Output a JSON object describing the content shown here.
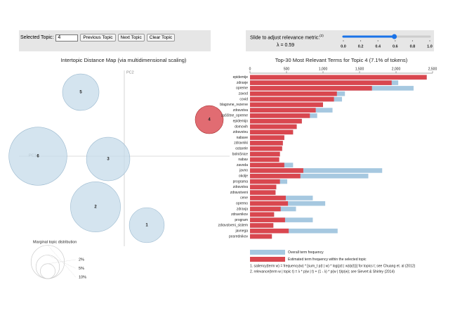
{
  "controls": {
    "selected_label": "Selected Topic:",
    "selected_value": "4",
    "buttons": [
      "Previous Topic",
      "Next Topic",
      "Clear Topic"
    ],
    "slider_label": "Slide to adjust relevance metric:",
    "slider_note": "(2)",
    "lambda": 0.59,
    "lambda_label": "λ = 0.59",
    "slider_ticks": [
      {
        "value": 0,
        "label": "0.0"
      },
      {
        "value": 0.2,
        "label": "0.2"
      },
      {
        "value": 0.4,
        "label": "0.4"
      },
      {
        "value": 0.6,
        "label": "0.6"
      },
      {
        "value": 0.8,
        "label": "0.8"
      },
      {
        "value": 1,
        "label": "1.0"
      }
    ]
  },
  "chart_data": [
    {
      "type": "bubble",
      "title": "Intertopic Distance Map (via multidimensional scaling)",
      "xlabel": "PC1",
      "ylabel": "PC2",
      "xlim": [
        -0.3,
        0.3
      ],
      "ylim": [
        -0.25,
        0.25
      ],
      "selected": 3,
      "labels": [
        "1",
        "2",
        "3",
        "4",
        "5",
        "6"
      ],
      "x": [
        0.064,
        -0.082,
        -0.046,
        0.242,
        -0.124,
        -0.246
      ],
      "y": [
        -0.196,
        -0.144,
        -0.008,
        0.104,
        0.182,
        0
      ],
      "sizes": [
        11,
        22.5,
        17,
        7.1,
        12,
        30.4
      ],
      "color": "#c5dbea",
      "selected_color": "#d9474f",
      "marginal": {
        "title": "Marginal topic distribution",
        "sizes": [
          2,
          5,
          10
        ],
        "labels": [
          "2%",
          "5%",
          "10%"
        ]
      }
    },
    {
      "type": "hbar",
      "title": "Top-30 Most Relevant Terms for Topic 4 (7.1% of tokens)",
      "xlim": [
        0,
        2500
      ],
      "xticks": [
        0,
        500,
        {
          "value": 1000,
          "label": "1,000"
        },
        {
          "value": 1500,
          "label": "1,500"
        },
        {
          "value": 2000,
          "label": "2,000"
        },
        {
          "value": 2500,
          "label": "2,500"
        }
      ],
      "categories": [
        "epidemije",
        "zdravje",
        "opreme",
        "zavod",
        "covid",
        "blagovne_rezerve",
        "zdravstva",
        "zaščitne_opreme",
        "epidemijo",
        "domovih",
        "zdravstvu",
        "nabave",
        "zdravniki",
        "ostarele",
        "bolnišnice",
        "nabav",
        "zavoda",
        "javno",
        "okolje",
        "programa",
        "zdravstva",
        "zdravstveni",
        "cene",
        "opremo",
        "zdravja",
        "zdravnikov",
        "program",
        "zdravstveni_sistem",
        "javnega",
        "posrednikov"
      ],
      "series": [
        {
          "name": "Overall term frequency",
          "color": "#a6c8e0",
          "values": [
            2420,
            2030,
            2240,
            1300,
            1260,
            1000,
            1130,
            920,
            710,
            640,
            590,
            470,
            450,
            440,
            410,
            400,
            590,
            1810,
            1620,
            510,
            360,
            350,
            860,
            1030,
            630,
            330,
            860,
            320,
            1200,
            300
          ]
        },
        {
          "name": "Estimated term frequency within the selected topic",
          "color": "#d9474f",
          "values": [
            2420,
            1940,
            1670,
            1190,
            1150,
            1000,
            900,
            820,
            710,
            640,
            590,
            470,
            450,
            440,
            410,
            400,
            470,
            730,
            690,
            410,
            360,
            350,
            490,
            520,
            420,
            330,
            480,
            320,
            530,
            300
          ]
        }
      ],
      "notes": [
        "1. saliency(term w) = frequency(w) * [sum_t p(t | w) * log(p(t | w)/p(t))] for topics t; see Chuang et. al (2012)",
        "2. relevance(term w | topic t) = λ * p(w | t) + (1 - λ) * p(w | t)/p(w); see Sievert & Shirley (2014)"
      ]
    }
  ]
}
